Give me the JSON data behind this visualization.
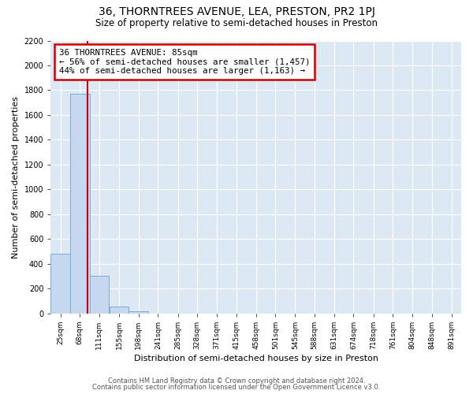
{
  "title": "36, THORNTREES AVENUE, LEA, PRESTON, PR2 1PJ",
  "subtitle": "Size of property relative to semi-detached houses in Preston",
  "xlabel": "Distribution of semi-detached houses by size in Preston",
  "ylabel": "Number of semi-detached properties",
  "categories": [
    "25sqm",
    "68sqm",
    "111sqm",
    "155sqm",
    "198sqm",
    "241sqm",
    "285sqm",
    "328sqm",
    "371sqm",
    "415sqm",
    "458sqm",
    "501sqm",
    "545sqm",
    "588sqm",
    "631sqm",
    "674sqm",
    "718sqm",
    "761sqm",
    "804sqm",
    "848sqm",
    "891sqm"
  ],
  "values": [
    480,
    1770,
    305,
    55,
    15,
    0,
    0,
    0,
    0,
    0,
    0,
    0,
    0,
    0,
    0,
    0,
    0,
    0,
    0,
    0,
    0
  ],
  "bar_color": "#c5d8ef",
  "bar_edge_color": "#7aadd4",
  "property_line_x": 85,
  "property_line_color": "#cc0000",
  "annotation_title": "36 THORNTREES AVENUE: 85sqm",
  "annotation_line1": "← 56% of semi-detached houses are smaller (1,457)",
  "annotation_line2": "44% of semi-detached houses are larger (1,163) →",
  "annotation_box_color": "#cc0000",
  "ylim": [
    0,
    2200
  ],
  "yticks": [
    0,
    200,
    400,
    600,
    800,
    1000,
    1200,
    1400,
    1600,
    1800,
    2000,
    2200
  ],
  "bin_width": 43,
  "footer1": "Contains HM Land Registry data © Crown copyright and database right 2024.",
  "footer2": "Contains public sector information licensed under the Open Government Licence v3.0.",
  "plot_bg_color": "#dce9f5"
}
